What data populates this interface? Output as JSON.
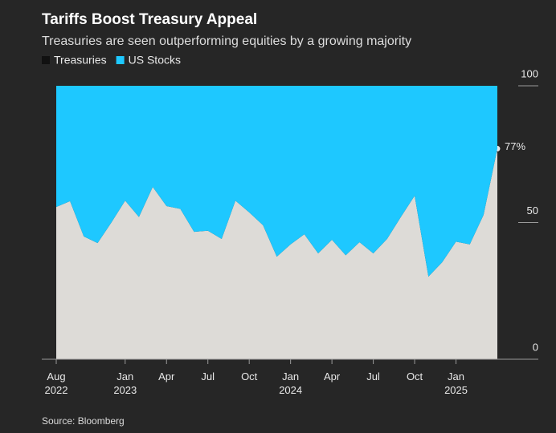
{
  "chart_data": {
    "type": "stacked_area",
    "title": "Tariffs Boost Treasury Appeal",
    "subtitle": "Treasuries are seen outperforming equities by a growing majority",
    "source": "Source: Bloomberg",
    "categories": [
      "Aug\n2022",
      null,
      null,
      null,
      null,
      "Jan\n2023",
      null,
      null,
      "Apr",
      null,
      null,
      "Jul",
      null,
      null,
      "Oct",
      null,
      null,
      "Jan\n2024",
      null,
      null,
      "Apr",
      null,
      null,
      "Jul",
      null,
      null,
      "Oct",
      null,
      null,
      "Jan\n2025",
      null,
      null,
      null
    ],
    "series": [
      {
        "name": "Treasuries",
        "color": "#111111",
        "fill": "#dddbd7",
        "end_label": "77%",
        "values": [
          55.7,
          57.8,
          44.9,
          42.5,
          50,
          58,
          52,
          63,
          56,
          55,
          46.6,
          47,
          44,
          58,
          53.7,
          49,
          37.5,
          42,
          45.7,
          38.7,
          43.7,
          38,
          42.8,
          38.7,
          44,
          52,
          59.8,
          30.2,
          35.5,
          43,
          42,
          52.8,
          77
        ]
      },
      {
        "name": "US Stocks",
        "color": "#1ec8ff",
        "fill": "#1ec8ff",
        "values": [
          44.3,
          42.2,
          55.1,
          57.5,
          50,
          42,
          48,
          37,
          44,
          45,
          53.4,
          53,
          56,
          42,
          46.3,
          51,
          62.5,
          58,
          54.3,
          61.3,
          56.3,
          62,
          57.2,
          61.3,
          56,
          48,
          40.2,
          69.8,
          64.5,
          57,
          58,
          47.2,
          23
        ]
      }
    ],
    "ylim": [
      0,
      100
    ],
    "yticks": [
      0,
      50,
      100
    ]
  }
}
